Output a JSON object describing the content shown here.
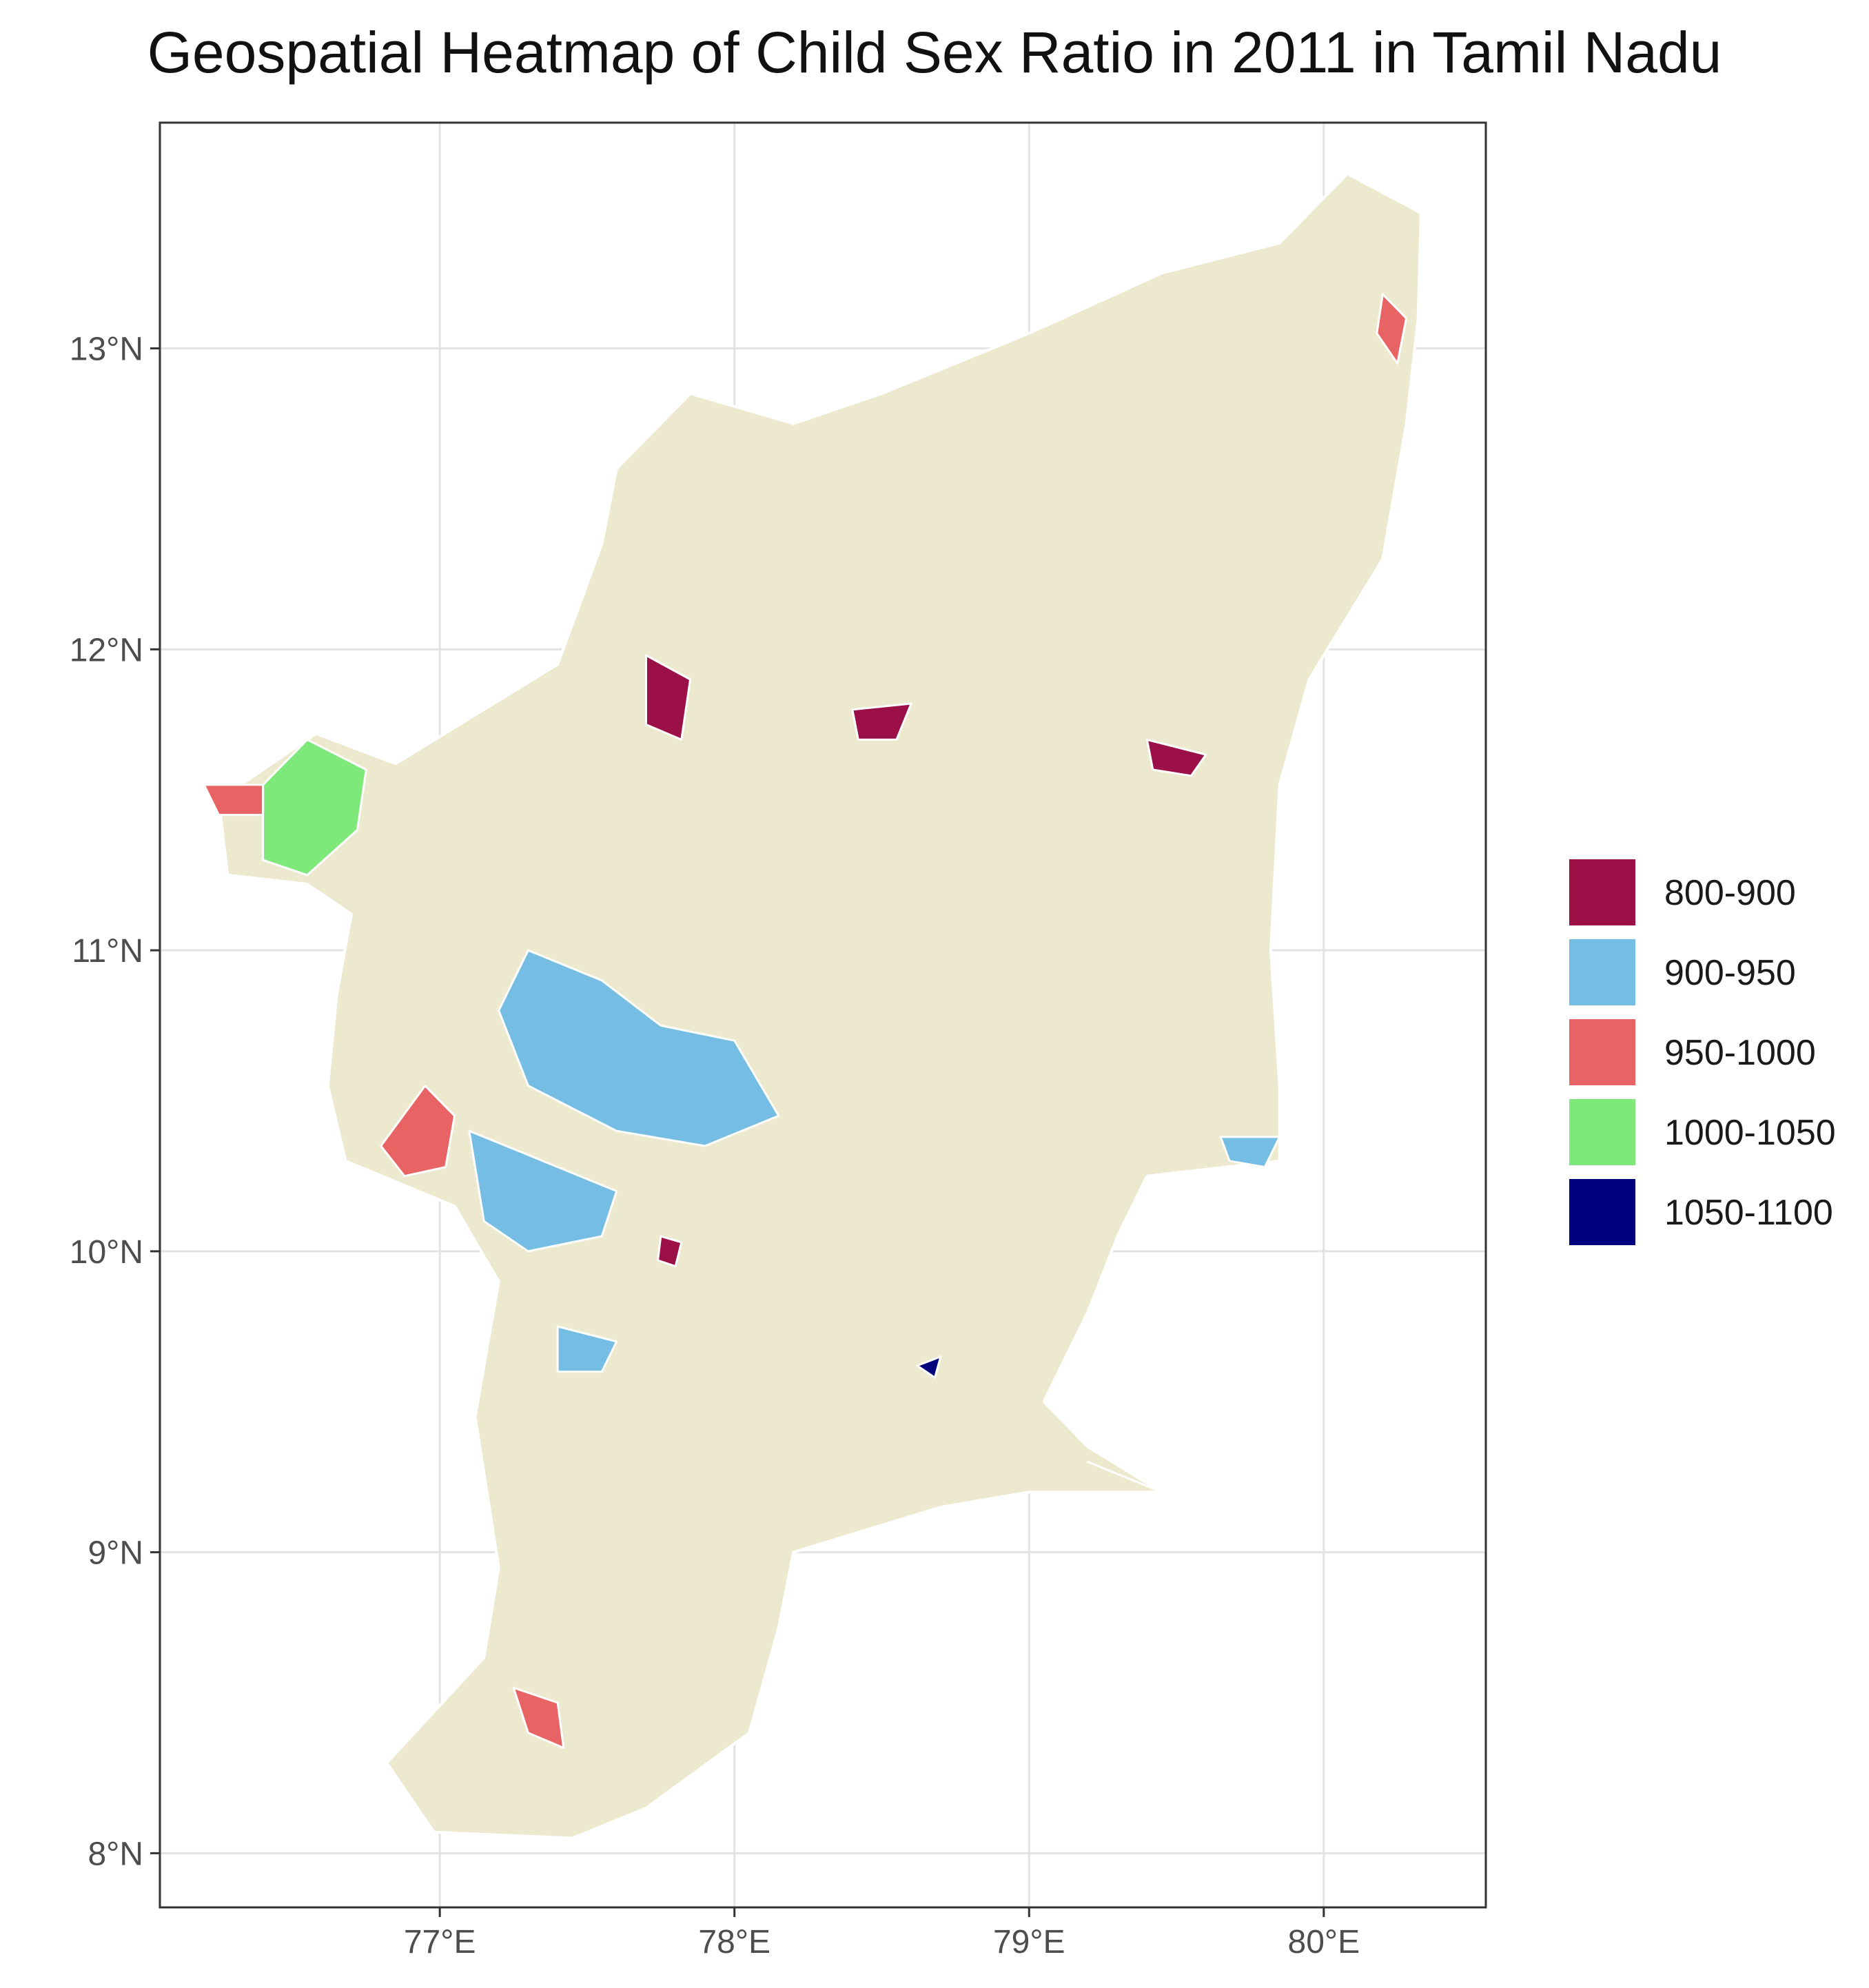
{
  "title": "Geospatial Heatmap of Child Sex Ratio in 2011 in Tamil Nadu",
  "map": {
    "lon_range": [
      76.05,
      80.55
    ],
    "lat_range": [
      7.82,
      13.75
    ],
    "lon_ticks": [
      {
        "value": 77,
        "label": "77°E"
      },
      {
        "value": 78,
        "label": "78°E"
      },
      {
        "value": 79,
        "label": "79°E"
      },
      {
        "value": 80,
        "label": "80°E"
      }
    ],
    "lat_ticks": [
      {
        "value": 8,
        "label": "8°N"
      },
      {
        "value": 9,
        "label": "9°N"
      },
      {
        "value": 10,
        "label": "10°N"
      },
      {
        "value": 11,
        "label": "11°N"
      },
      {
        "value": 12,
        "label": "12°N"
      },
      {
        "value": 13,
        "label": "13°N"
      }
    ],
    "grid": true,
    "base_fill": "#ece9cf",
    "grid_color": "#e3e3e3",
    "panel_border": "#333333"
  },
  "legend": {
    "placement": "right",
    "items": [
      {
        "label": "800-900",
        "color": "#9b1147"
      },
      {
        "label": "900-950",
        "color": "#75bde3"
      },
      {
        "label": "950-1000",
        "color": "#e86464"
      },
      {
        "label": "1000-1050",
        "color": "#7ee87a"
      },
      {
        "label": "1050-1100",
        "color": "#00007f"
      }
    ]
  },
  "chart_data": {
    "type": "heatmap",
    "title": "Geospatial Heatmap of Child Sex Ratio in 2011 in Tamil Nadu",
    "xlabel": "",
    "ylabel": "",
    "xlim": [
      76.05,
      80.55
    ],
    "ylim": [
      7.82,
      13.75
    ],
    "grid": true,
    "legend_placement": "right",
    "categories": [
      "800-900",
      "900-950",
      "950-1000",
      "1000-1050",
      "1050-1100"
    ],
    "state_outline": [
      [
        76.98,
        8.07
      ],
      [
        76.82,
        8.3
      ],
      [
        77.15,
        8.65
      ],
      [
        77.2,
        8.95
      ],
      [
        77.12,
        9.45
      ],
      [
        77.2,
        9.9
      ],
      [
        77.05,
        10.15
      ],
      [
        76.68,
        10.3
      ],
      [
        76.62,
        10.55
      ],
      [
        76.65,
        10.85
      ],
      [
        76.7,
        11.12
      ],
      [
        76.55,
        11.22
      ],
      [
        76.28,
        11.25
      ],
      [
        76.25,
        11.5
      ],
      [
        76.58,
        11.72
      ],
      [
        76.85,
        11.62
      ],
      [
        77.15,
        11.8
      ],
      [
        77.4,
        11.95
      ],
      [
        77.55,
        12.35
      ],
      [
        77.6,
        12.6
      ],
      [
        77.85,
        12.85
      ],
      [
        78.2,
        12.75
      ],
      [
        78.5,
        12.85
      ],
      [
        79.0,
        13.05
      ],
      [
        79.45,
        13.25
      ],
      [
        79.85,
        13.35
      ],
      [
        80.08,
        13.58
      ],
      [
        80.33,
        13.45
      ],
      [
        80.32,
        13.1
      ],
      [
        80.28,
        12.75
      ],
      [
        80.2,
        12.3
      ],
      [
        79.95,
        11.9
      ],
      [
        79.85,
        11.55
      ],
      [
        79.82,
        11.0
      ],
      [
        79.85,
        10.55
      ],
      [
        79.85,
        10.3
      ],
      [
        79.4,
        10.25
      ],
      [
        79.3,
        10.05
      ],
      [
        79.2,
        9.8
      ],
      [
        79.05,
        9.5
      ],
      [
        79.2,
        9.35
      ],
      [
        79.45,
        9.2
      ],
      [
        79.0,
        9.2
      ],
      [
        78.7,
        9.15
      ],
      [
        78.2,
        9.0
      ],
      [
        78.15,
        8.75
      ],
      [
        78.05,
        8.4
      ],
      [
        77.7,
        8.15
      ],
      [
        77.45,
        8.05
      ]
    ],
    "regions": [
      {
        "category": "1000-1050",
        "outline": [
          [
            76.4,
            11.55
          ],
          [
            76.55,
            11.7
          ],
          [
            76.75,
            11.6
          ],
          [
            76.72,
            11.4
          ],
          [
            76.55,
            11.25
          ],
          [
            76.4,
            11.3
          ]
        ]
      },
      {
        "category": "950-1000",
        "outline": [
          [
            76.2,
            11.55
          ],
          [
            76.4,
            11.55
          ],
          [
            76.4,
            11.45
          ],
          [
            76.25,
            11.45
          ]
        ]
      },
      {
        "category": "950-1000",
        "outline": [
          [
            76.8,
            10.35
          ],
          [
            76.95,
            10.55
          ],
          [
            77.05,
            10.45
          ],
          [
            77.02,
            10.28
          ],
          [
            76.88,
            10.25
          ]
        ]
      },
      {
        "category": "950-1000",
        "outline": [
          [
            77.25,
            8.55
          ],
          [
            77.4,
            8.5
          ],
          [
            77.42,
            8.35
          ],
          [
            77.3,
            8.4
          ]
        ]
      },
      {
        "category": "950-1000",
        "outline": [
          [
            80.2,
            13.18
          ],
          [
            80.28,
            13.1
          ],
          [
            80.25,
            12.95
          ],
          [
            80.18,
            13.05
          ]
        ]
      },
      {
        "category": "950-1000",
        "outline": [
          [
            79.2,
            9.3
          ],
          [
            79.45,
            9.2
          ],
          [
            79.3,
            9.26
          ]
        ]
      },
      {
        "category": "900-950",
        "outline": [
          [
            77.3,
            11.0
          ],
          [
            77.55,
            10.9
          ],
          [
            77.75,
            10.75
          ],
          [
            78.0,
            10.7
          ],
          [
            78.15,
            10.45
          ],
          [
            77.9,
            10.35
          ],
          [
            77.6,
            10.4
          ],
          [
            77.3,
            10.55
          ],
          [
            77.2,
            10.8
          ]
        ]
      },
      {
        "category": "900-950",
        "outline": [
          [
            77.1,
            10.4
          ],
          [
            77.35,
            10.3
          ],
          [
            77.6,
            10.2
          ],
          [
            77.55,
            10.05
          ],
          [
            77.3,
            10.0
          ],
          [
            77.15,
            10.1
          ]
        ]
      },
      {
        "category": "900-950",
        "outline": [
          [
            77.4,
            9.75
          ],
          [
            77.6,
            9.7
          ],
          [
            77.55,
            9.6
          ],
          [
            77.4,
            9.6
          ]
        ]
      },
      {
        "category": "900-950",
        "outline": [
          [
            79.65,
            10.38
          ],
          [
            79.85,
            10.38
          ],
          [
            79.8,
            10.28
          ],
          [
            79.68,
            10.3
          ]
        ]
      },
      {
        "category": "800-900",
        "outline": [
          [
            77.7,
            11.98
          ],
          [
            77.85,
            11.9
          ],
          [
            77.82,
            11.7
          ],
          [
            77.7,
            11.75
          ]
        ]
      },
      {
        "category": "800-900",
        "outline": [
          [
            78.4,
            11.8
          ],
          [
            78.6,
            11.82
          ],
          [
            78.55,
            11.7
          ],
          [
            78.42,
            11.7
          ]
        ]
      },
      {
        "category": "800-900",
        "outline": [
          [
            79.4,
            11.7
          ],
          [
            79.6,
            11.65
          ],
          [
            79.55,
            11.58
          ],
          [
            79.42,
            11.6
          ]
        ]
      },
      {
        "category": "800-900",
        "outline": [
          [
            77.75,
            10.05
          ],
          [
            77.82,
            10.03
          ],
          [
            77.8,
            9.95
          ],
          [
            77.74,
            9.97
          ]
        ]
      },
      {
        "category": "1050-1100",
        "outline": [
          [
            78.62,
            9.62
          ],
          [
            78.7,
            9.65
          ],
          [
            78.68,
            9.58
          ]
        ]
      }
    ]
  }
}
